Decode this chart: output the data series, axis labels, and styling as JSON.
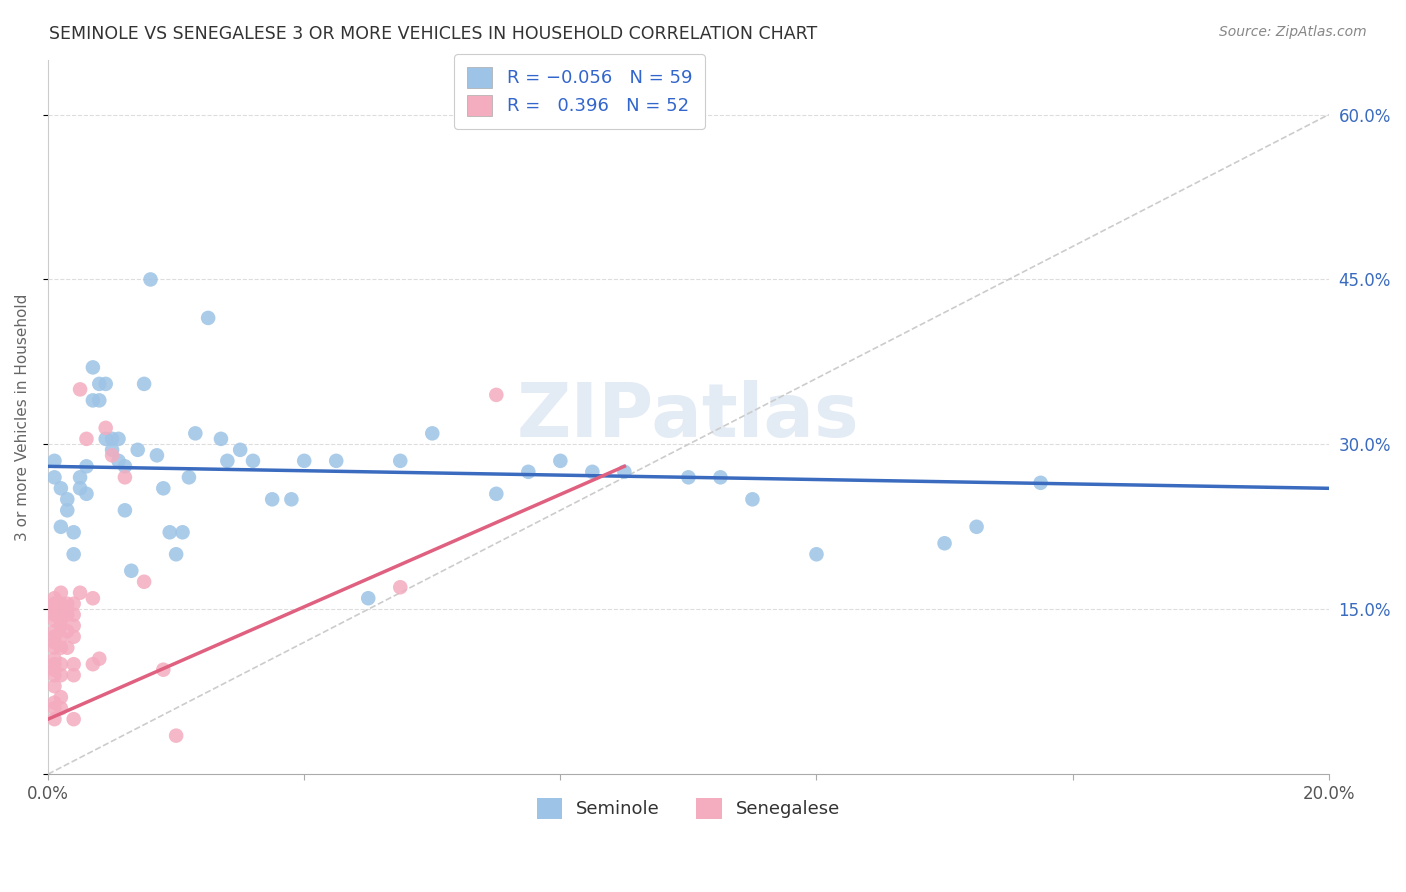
{
  "title": "SEMINOLE VS SENEGALESE 3 OR MORE VEHICLES IN HOUSEHOLD CORRELATION CHART",
  "source": "Source: ZipAtlas.com",
  "ylabel": "3 or more Vehicles in Household",
  "legend_label_seminole": "Seminole",
  "legend_label_senegalese": "Senegalese",
  "watermark": "ZIPatlas",
  "blue_color": "#3a6bbf",
  "pink_color": "#e06080",
  "blue_scatter_color": "#9dc3e6",
  "pink_scatter_color": "#f4acbf",
  "x_min": 0.0,
  "x_max": 0.2,
  "y_min": 0.0,
  "y_max": 0.65,
  "blue_line": {
    "x0": 0.0,
    "y0": 0.28,
    "x1": 0.2,
    "y1": 0.26
  },
  "pink_line": {
    "x0": 0.0,
    "y0": 0.05,
    "x1": 0.09,
    "y1": 0.28
  },
  "ref_line": {
    "x0": 0.0,
    "y0": 0.0,
    "x1": 0.2,
    "y1": 0.6
  },
  "seminole_data": [
    [
      0.001,
      0.285
    ],
    [
      0.001,
      0.27
    ],
    [
      0.002,
      0.225
    ],
    [
      0.002,
      0.26
    ],
    [
      0.003,
      0.25
    ],
    [
      0.003,
      0.24
    ],
    [
      0.004,
      0.22
    ],
    [
      0.004,
      0.2
    ],
    [
      0.005,
      0.27
    ],
    [
      0.005,
      0.26
    ],
    [
      0.006,
      0.28
    ],
    [
      0.006,
      0.255
    ],
    [
      0.007,
      0.37
    ],
    [
      0.007,
      0.34
    ],
    [
      0.008,
      0.355
    ],
    [
      0.008,
      0.34
    ],
    [
      0.009,
      0.355
    ],
    [
      0.009,
      0.305
    ],
    [
      0.01,
      0.305
    ],
    [
      0.01,
      0.295
    ],
    [
      0.011,
      0.285
    ],
    [
      0.011,
      0.305
    ],
    [
      0.012,
      0.28
    ],
    [
      0.012,
      0.24
    ],
    [
      0.013,
      0.185
    ],
    [
      0.014,
      0.295
    ],
    [
      0.015,
      0.355
    ],
    [
      0.016,
      0.45
    ],
    [
      0.017,
      0.29
    ],
    [
      0.018,
      0.26
    ],
    [
      0.019,
      0.22
    ],
    [
      0.02,
      0.2
    ],
    [
      0.021,
      0.22
    ],
    [
      0.022,
      0.27
    ],
    [
      0.023,
      0.31
    ],
    [
      0.025,
      0.415
    ],
    [
      0.027,
      0.305
    ],
    [
      0.028,
      0.285
    ],
    [
      0.03,
      0.295
    ],
    [
      0.032,
      0.285
    ],
    [
      0.035,
      0.25
    ],
    [
      0.038,
      0.25
    ],
    [
      0.04,
      0.285
    ],
    [
      0.045,
      0.285
    ],
    [
      0.05,
      0.16
    ],
    [
      0.055,
      0.285
    ],
    [
      0.06,
      0.31
    ],
    [
      0.07,
      0.255
    ],
    [
      0.075,
      0.275
    ],
    [
      0.08,
      0.285
    ],
    [
      0.085,
      0.275
    ],
    [
      0.09,
      0.275
    ],
    [
      0.1,
      0.27
    ],
    [
      0.105,
      0.27
    ],
    [
      0.11,
      0.25
    ],
    [
      0.12,
      0.2
    ],
    [
      0.14,
      0.21
    ],
    [
      0.145,
      0.225
    ],
    [
      0.155,
      0.265
    ]
  ],
  "senegalese_data": [
    [
      0.001,
      0.05
    ],
    [
      0.001,
      0.06
    ],
    [
      0.001,
      0.065
    ],
    [
      0.001,
      0.08
    ],
    [
      0.001,
      0.09
    ],
    [
      0.001,
      0.095
    ],
    [
      0.001,
      0.1
    ],
    [
      0.001,
      0.105
    ],
    [
      0.001,
      0.115
    ],
    [
      0.001,
      0.12
    ],
    [
      0.001,
      0.125
    ],
    [
      0.001,
      0.13
    ],
    [
      0.001,
      0.14
    ],
    [
      0.001,
      0.145
    ],
    [
      0.001,
      0.15
    ],
    [
      0.001,
      0.155
    ],
    [
      0.001,
      0.16
    ],
    [
      0.002,
      0.06
    ],
    [
      0.002,
      0.07
    ],
    [
      0.002,
      0.09
    ],
    [
      0.002,
      0.1
    ],
    [
      0.002,
      0.115
    ],
    [
      0.002,
      0.125
    ],
    [
      0.002,
      0.135
    ],
    [
      0.002,
      0.14
    ],
    [
      0.002,
      0.145
    ],
    [
      0.002,
      0.155
    ],
    [
      0.002,
      0.165
    ],
    [
      0.003,
      0.115
    ],
    [
      0.003,
      0.13
    ],
    [
      0.003,
      0.145
    ],
    [
      0.003,
      0.155
    ],
    [
      0.004,
      0.05
    ],
    [
      0.004,
      0.09
    ],
    [
      0.004,
      0.1
    ],
    [
      0.004,
      0.125
    ],
    [
      0.004,
      0.135
    ],
    [
      0.004,
      0.145
    ],
    [
      0.004,
      0.155
    ],
    [
      0.005,
      0.165
    ],
    [
      0.005,
      0.35
    ],
    [
      0.006,
      0.305
    ],
    [
      0.007,
      0.1
    ],
    [
      0.007,
      0.16
    ],
    [
      0.008,
      0.105
    ],
    [
      0.009,
      0.315
    ],
    [
      0.01,
      0.29
    ],
    [
      0.012,
      0.27
    ],
    [
      0.015,
      0.175
    ],
    [
      0.018,
      0.095
    ],
    [
      0.02,
      0.035
    ],
    [
      0.055,
      0.17
    ],
    [
      0.07,
      0.345
    ]
  ]
}
